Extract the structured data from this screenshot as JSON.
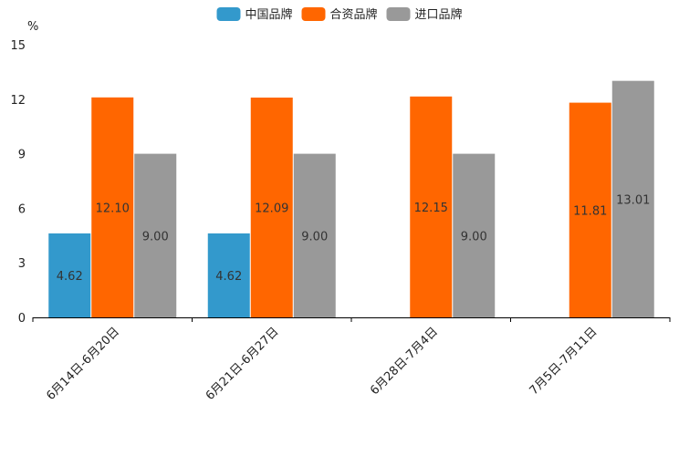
{
  "chart_data": {
    "type": "bar",
    "unit_label": "%",
    "categories": [
      "6月14日-6月20日",
      "6月21日-6月27日",
      "6月28日-7月4日",
      "7月5日-7月11日"
    ],
    "series": [
      {
        "name": "中国品牌",
        "color": "#3399cc",
        "values": [
          4.62,
          4.62,
          null,
          null
        ],
        "labels": [
          "4.62",
          "4.62",
          "",
          ""
        ]
      },
      {
        "name": "合资品牌",
        "color": "#ff6600",
        "values": [
          12.1,
          12.09,
          12.15,
          11.81
        ],
        "labels": [
          "12.10",
          "12.09",
          "12.15",
          "11.81"
        ]
      },
      {
        "name": "进口品牌",
        "color": "#999999",
        "values": [
          9.0,
          9.0,
          9.0,
          13.01
        ],
        "labels": [
          "9.00",
          "9.00",
          "9.00",
          "13.01"
        ]
      }
    ],
    "ylim": [
      0,
      15
    ],
    "yticks": [
      0,
      3,
      6,
      9,
      12,
      15
    ],
    "legend_position": "top-center",
    "grid": false
  }
}
